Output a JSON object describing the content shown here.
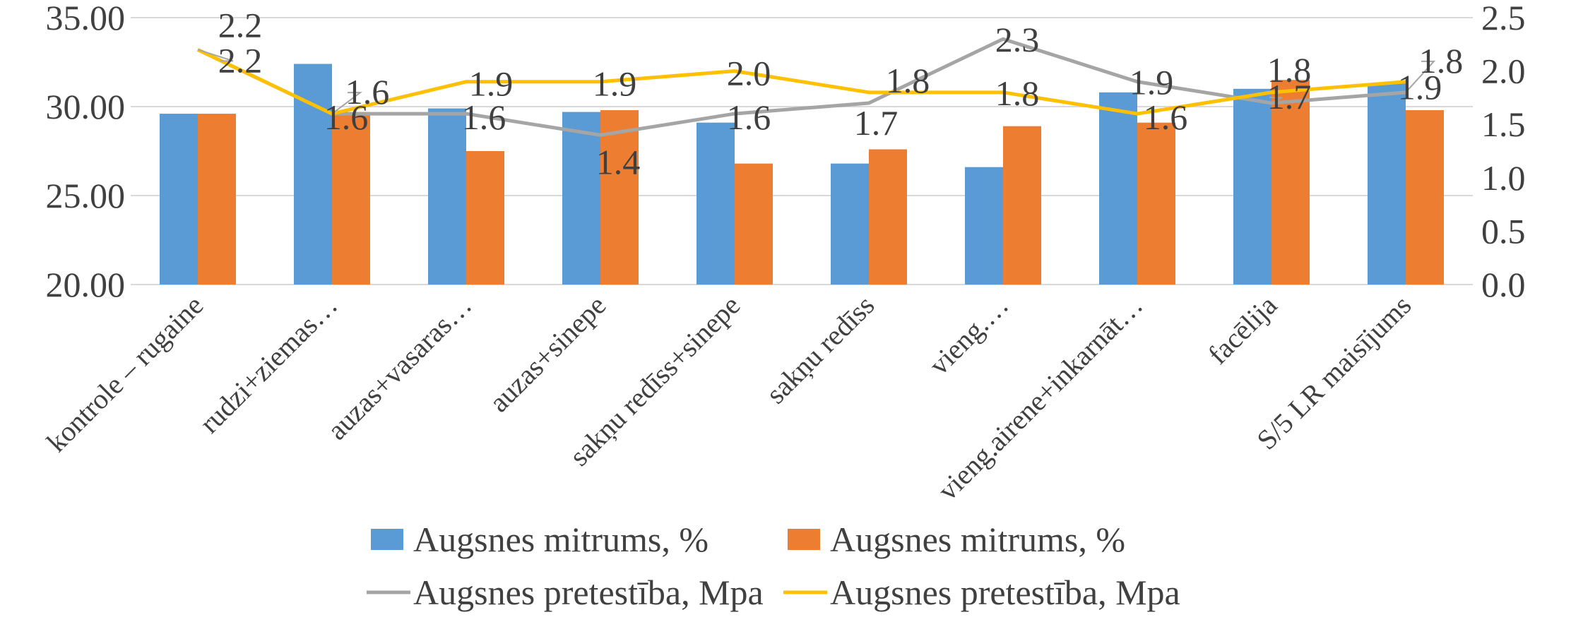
{
  "chart_data": {
    "type": "bar",
    "categories": [
      "kontrole – rugaine",
      "rudzi+ziemas…",
      "auzas+vasaras…",
      "auzas+sinepe",
      "sakņu redīss+sinepe",
      "sakņu redīss",
      "vieng.…",
      "vieng.airene+inkarnāt…",
      "facēlija",
      "S/5 LR maisījums"
    ],
    "y_left": {
      "range": [
        20,
        35
      ],
      "ticks": [
        "20.00",
        "25.00",
        "30.00",
        "35.00"
      ]
    },
    "y_right": {
      "range": [
        0,
        2.5
      ],
      "ticks": [
        "0.0",
        "0.5",
        "1.0",
        "1.5",
        "2.0",
        "2.5"
      ]
    },
    "grid": true,
    "legend_position": "bottom",
    "series": [
      {
        "name": "Augsnes mitrums, %",
        "type": "bar",
        "axis": "left",
        "color": "#5B9BD5",
        "values": [
          29.6,
          32.4,
          29.9,
          29.7,
          29.1,
          26.8,
          26.6,
          30.8,
          31.0,
          31.3
        ]
      },
      {
        "name": "Augsnes mitrums, %",
        "type": "bar",
        "axis": "left",
        "color": "#ED7D31",
        "values": [
          29.6,
          29.7,
          27.5,
          29.8,
          26.8,
          27.6,
          28.9,
          29.1,
          31.5,
          29.8
        ]
      },
      {
        "name": "Augsnes pretestība, Mpa",
        "type": "line",
        "axis": "right",
        "color": "#A5A5A5",
        "values": [
          2.2,
          1.6,
          1.6,
          1.4,
          1.6,
          1.7,
          2.3,
          1.9,
          1.7,
          1.8
        ],
        "labels": [
          "2.2",
          "1.6",
          "1.6",
          "1.4",
          "1.6",
          "1.7",
          "2.3",
          "1.9",
          "1.7",
          "1.8"
        ]
      },
      {
        "name": "Augsnes pretestība, Mpa",
        "type": "line",
        "axis": "right",
        "color": "#FFC000",
        "values": [
          2.2,
          1.6,
          1.9,
          1.9,
          2.0,
          1.8,
          1.8,
          1.6,
          1.8,
          1.9
        ],
        "labels": [
          "2.2",
          "1.6",
          "1.9",
          "1.9",
          "2.0",
          "1.8",
          "1.8",
          "1.6",
          "1.8",
          "1.9"
        ]
      }
    ]
  }
}
